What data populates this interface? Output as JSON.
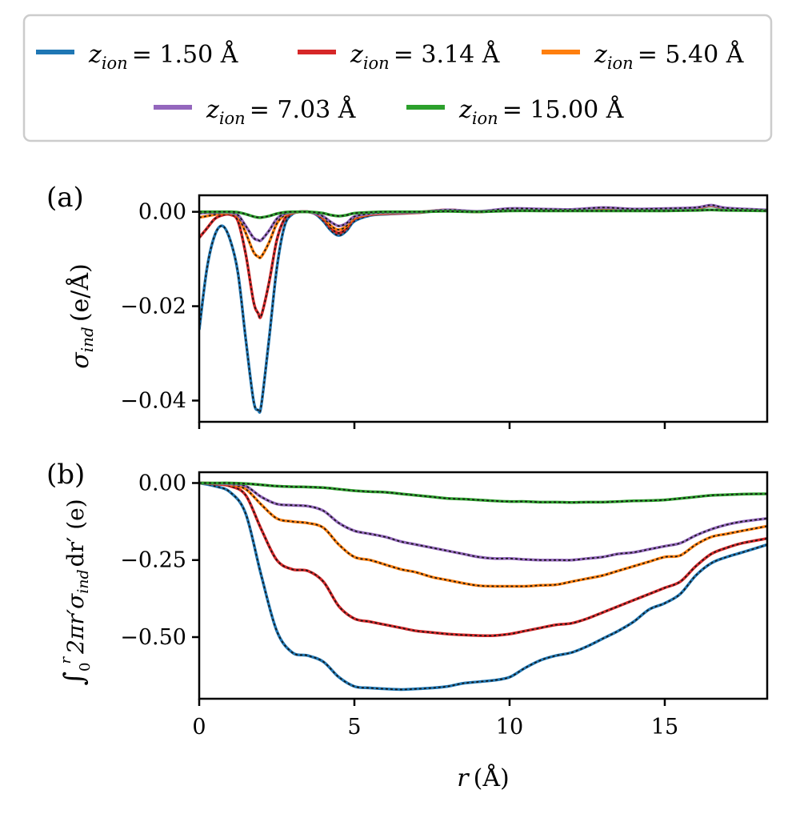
{
  "legend": {
    "entries": [
      {
        "label": "z_ion = 1.50 Å",
        "sub": "ion",
        "value": "= 1.50 Å",
        "color": "#1f77b4"
      },
      {
        "label": "z_ion = 3.14 Å",
        "sub": "ion",
        "value": "= 3.14 Å",
        "color": "#d62728"
      },
      {
        "label": "z_ion = 5.40 Å",
        "sub": "ion",
        "value": "= 5.40 Å",
        "color": "#ff7f0e"
      },
      {
        "label": "z_ion = 7.03 Å",
        "sub": "ion",
        "value": "= 7.03 Å",
        "color": "#9467bd"
      },
      {
        "label": "z_ion = 15.00 Å",
        "sub": "ion",
        "value": "= 15.00 Å",
        "color": "#2ca02c"
      }
    ]
  },
  "chart_data": [
    {
      "type": "line",
      "panel_label": "(a)",
      "ylabel": "σ_ind (e/Å)",
      "ylabel_main": "σ",
      "ylabel_sub": "ind",
      "ylabel_unit": "(e/Å)",
      "xlim": [
        0,
        18.3
      ],
      "ylim": [
        -0.0445,
        0.0035
      ],
      "yticks": [
        0.0,
        -0.02,
        -0.04
      ],
      "ytick_labels": [
        "0.00",
        "−0.02",
        "−0.04"
      ],
      "x": [
        0,
        0.25,
        0.5,
        0.75,
        1.0,
        1.25,
        1.5,
        1.75,
        1.9,
        2.0,
        2.25,
        2.5,
        2.75,
        3.0,
        3.25,
        3.5,
        3.75,
        4.0,
        4.25,
        4.5,
        4.75,
        5.0,
        5.5,
        6.0,
        7.0,
        8.0,
        9.0,
        10.0,
        11.0,
        12.0,
        13.0,
        14.0,
        15.0,
        16.0,
        16.5,
        17.0,
        18.3
      ],
      "series": [
        {
          "name": "z_ion = 1.50 Å",
          "color": "#1f77b4",
          "values": [
            -0.025,
            -0.012,
            -0.005,
            -0.003,
            -0.006,
            -0.013,
            -0.027,
            -0.04,
            -0.042,
            -0.041,
            -0.027,
            -0.012,
            -0.003,
            -0.0005,
            0.0,
            0.0,
            -0.0005,
            -0.002,
            -0.004,
            -0.005,
            -0.004,
            -0.002,
            -0.0008,
            -0.0005,
            -0.0002,
            0.0003,
            0.0,
            0.0004,
            0.0003,
            0.0003,
            0.0006,
            0.0003,
            0.0005,
            0.0007,
            0.0012,
            0.0006,
            0.0003
          ]
        },
        {
          "name": "z_ion = 3.14 Å",
          "color": "#d62728",
          "values": [
            -0.0055,
            -0.0035,
            -0.0015,
            -0.0007,
            -0.0006,
            -0.002,
            -0.009,
            -0.019,
            -0.0215,
            -0.022,
            -0.015,
            -0.006,
            -0.0015,
            -0.0003,
            0.0,
            0.0,
            -0.0004,
            -0.0015,
            -0.0035,
            -0.0045,
            -0.0035,
            -0.0015,
            -0.0006,
            -0.0004,
            -0.0002,
            0.0004,
            0.0,
            0.0006,
            0.0005,
            0.0004,
            0.0008,
            0.0005,
            0.0006,
            0.0008,
            0.0013,
            0.0007,
            0.0003
          ]
        },
        {
          "name": "z_ion = 5.40 Å",
          "color": "#ff7f0e",
          "values": [
            -0.0012,
            -0.0009,
            -0.0006,
            -0.0003,
            -0.0003,
            -0.001,
            -0.0045,
            -0.0085,
            -0.0095,
            -0.0095,
            -0.0065,
            -0.0025,
            -0.0007,
            -0.0002,
            0.0,
            0.0,
            -0.0003,
            -0.0012,
            -0.003,
            -0.0038,
            -0.003,
            -0.0013,
            -0.0005,
            -0.0003,
            -0.0001,
            0.0004,
            0.0,
            0.0006,
            0.0005,
            0.0004,
            0.0008,
            0.0005,
            0.0006,
            0.0008,
            0.0013,
            0.0007,
            0.0003
          ]
        },
        {
          "name": "z_ion = 7.03 Å",
          "color": "#9467bd",
          "values": [
            -0.0003,
            -0.0002,
            -0.0002,
            -0.0001,
            -0.0002,
            -0.0007,
            -0.003,
            -0.0055,
            -0.006,
            -0.006,
            -0.004,
            -0.0015,
            -0.0004,
            -0.0001,
            0.0,
            0.0,
            -0.0003,
            -0.001,
            -0.0022,
            -0.003,
            -0.0024,
            -0.001,
            -0.0004,
            -0.0002,
            -0.0001,
            0.0004,
            0.0001,
            0.0007,
            0.0006,
            0.0005,
            0.0009,
            0.0006,
            0.0007,
            0.0009,
            0.0014,
            0.0008,
            0.0004
          ]
        },
        {
          "name": "z_ion = 15.00 Å",
          "color": "#2ca02c",
          "values": [
            0.0,
            0.0,
            0.0,
            0.0,
            0.0,
            -0.0001,
            -0.0005,
            -0.001,
            -0.0012,
            -0.0012,
            -0.0009,
            -0.0004,
            -0.0001,
            0.0,
            0.0,
            0.0,
            -0.0001,
            -0.0003,
            -0.0007,
            -0.0009,
            -0.0007,
            -0.0003,
            -0.0001,
            0.0,
            0.0,
            0.0001,
            0.0,
            0.0002,
            0.0002,
            0.0002,
            0.0002,
            0.0002,
            0.0002,
            0.0003,
            0.0004,
            0.0003,
            0.0002
          ]
        }
      ]
    },
    {
      "type": "line",
      "panel_label": "(b)",
      "ylabel": "∫₀ʳ 2πr′ σ_ind dr′ (e)",
      "ylabel_int": "∫",
      "ylabel_lower": "0",
      "ylabel_upper": "r",
      "ylabel_body": "2πr′σ",
      "ylabel_sub": "ind",
      "ylabel_tail": "dr′ (e)",
      "xlabel": "r (Å)",
      "xlabel_var": "r",
      "xlabel_unit": "(Å)",
      "xlim": [
        0,
        18.3
      ],
      "ylim": [
        -0.7,
        0.035
      ],
      "xticks": [
        0,
        5,
        10,
        15
      ],
      "xtick_labels": [
        "0",
        "5",
        "10",
        "15"
      ],
      "yticks": [
        0.0,
        -0.25,
        -0.5
      ],
      "ytick_labels": [
        "0.00",
        "−0.25",
        "−0.50"
      ],
      "x": [
        0,
        0.5,
        1.0,
        1.5,
        2.0,
        2.5,
        3.0,
        3.5,
        4.0,
        4.5,
        5.0,
        5.5,
        6.0,
        6.5,
        7.0,
        7.5,
        8.0,
        8.5,
        9.0,
        9.5,
        10.0,
        10.5,
        11.0,
        11.5,
        12.0,
        12.5,
        13.0,
        13.5,
        14.0,
        14.5,
        15.0,
        15.5,
        16.0,
        16.5,
        17.0,
        17.5,
        18.3
      ],
      "series": [
        {
          "name": "z_ion = 1.50 Å",
          "color": "#1f77b4",
          "values": [
            0.0,
            -0.01,
            -0.03,
            -0.1,
            -0.3,
            -0.48,
            -0.55,
            -0.56,
            -0.58,
            -0.63,
            -0.66,
            -0.665,
            -0.668,
            -0.67,
            -0.668,
            -0.665,
            -0.66,
            -0.65,
            -0.645,
            -0.64,
            -0.63,
            -0.6,
            -0.575,
            -0.56,
            -0.55,
            -0.53,
            -0.505,
            -0.48,
            -0.45,
            -0.41,
            -0.39,
            -0.36,
            -0.3,
            -0.26,
            -0.24,
            -0.225,
            -0.2
          ]
        },
        {
          "name": "z_ion = 3.14 Å",
          "color": "#d62728",
          "values": [
            0.0,
            -0.003,
            -0.01,
            -0.04,
            -0.15,
            -0.25,
            -0.28,
            -0.285,
            -0.32,
            -0.4,
            -0.44,
            -0.45,
            -0.46,
            -0.47,
            -0.48,
            -0.485,
            -0.49,
            -0.493,
            -0.495,
            -0.495,
            -0.49,
            -0.48,
            -0.47,
            -0.46,
            -0.455,
            -0.44,
            -0.42,
            -0.4,
            -0.38,
            -0.36,
            -0.34,
            -0.32,
            -0.27,
            -0.23,
            -0.21,
            -0.195,
            -0.18
          ]
        },
        {
          "name": "z_ion = 5.40 Å",
          "color": "#ff7f0e",
          "values": [
            0.0,
            -0.001,
            -0.005,
            -0.02,
            -0.07,
            -0.115,
            -0.125,
            -0.13,
            -0.145,
            -0.2,
            -0.24,
            -0.25,
            -0.265,
            -0.28,
            -0.29,
            -0.305,
            -0.315,
            -0.325,
            -0.333,
            -0.335,
            -0.335,
            -0.335,
            -0.332,
            -0.33,
            -0.32,
            -0.31,
            -0.3,
            -0.285,
            -0.27,
            -0.255,
            -0.24,
            -0.235,
            -0.2,
            -0.175,
            -0.165,
            -0.155,
            -0.14
          ]
        },
        {
          "name": "z_ion = 7.03 Å",
          "color": "#9467bd",
          "values": [
            0.0,
            -0.001,
            -0.003,
            -0.01,
            -0.045,
            -0.068,
            -0.072,
            -0.075,
            -0.09,
            -0.13,
            -0.155,
            -0.165,
            -0.175,
            -0.19,
            -0.2,
            -0.21,
            -0.22,
            -0.23,
            -0.24,
            -0.245,
            -0.245,
            -0.248,
            -0.25,
            -0.25,
            -0.25,
            -0.245,
            -0.24,
            -0.23,
            -0.225,
            -0.215,
            -0.205,
            -0.195,
            -0.17,
            -0.15,
            -0.135,
            -0.125,
            -0.115
          ]
        },
        {
          "name": "z_ion = 15.00 Å",
          "color": "#2ca02c",
          "values": [
            0.0,
            0.0,
            0.0,
            -0.002,
            -0.006,
            -0.01,
            -0.012,
            -0.013,
            -0.015,
            -0.02,
            -0.025,
            -0.028,
            -0.03,
            -0.035,
            -0.04,
            -0.045,
            -0.05,
            -0.052,
            -0.055,
            -0.058,
            -0.06,
            -0.06,
            -0.062,
            -0.062,
            -0.063,
            -0.062,
            -0.062,
            -0.06,
            -0.058,
            -0.057,
            -0.055,
            -0.05,
            -0.045,
            -0.04,
            -0.038,
            -0.036,
            -0.035
          ]
        }
      ]
    }
  ]
}
